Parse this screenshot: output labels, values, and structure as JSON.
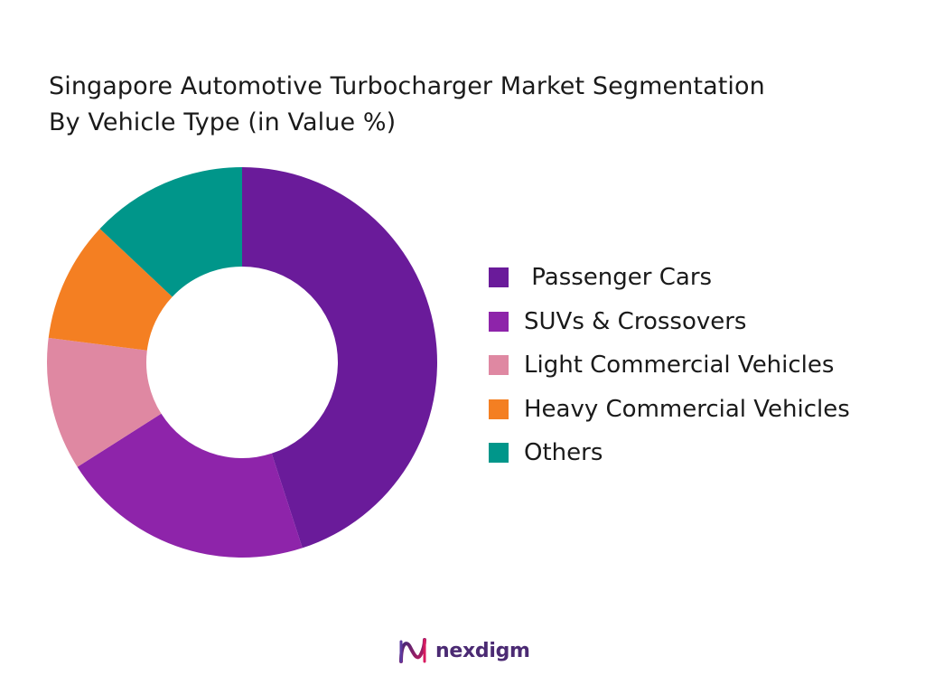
{
  "chart_data": {
    "type": "pie",
    "title_lines": [
      "Singapore Automotive Turbocharger Market Segmentation",
      "By Vehicle Type (in Value %)"
    ],
    "donut": true,
    "legend_position": "right",
    "series": [
      {
        "name": " Passenger Cars",
        "value": 45,
        "color": "#6a1b9a"
      },
      {
        "name": "SUVs & Crossovers",
        "value": 21,
        "color": "#8e24aa"
      },
      {
        "name": "Light Commercial Vehicles",
        "value": 11,
        "color": "#df88a2"
      },
      {
        "name": "Heavy Commercial Vehicles",
        "value": 10,
        "color": "#f47f22"
      },
      {
        "name": "Others",
        "value": 13,
        "color": "#00968a"
      }
    ]
  },
  "branding": {
    "logo_text": "nexdigm",
    "logo_color": "#4b2a73"
  }
}
